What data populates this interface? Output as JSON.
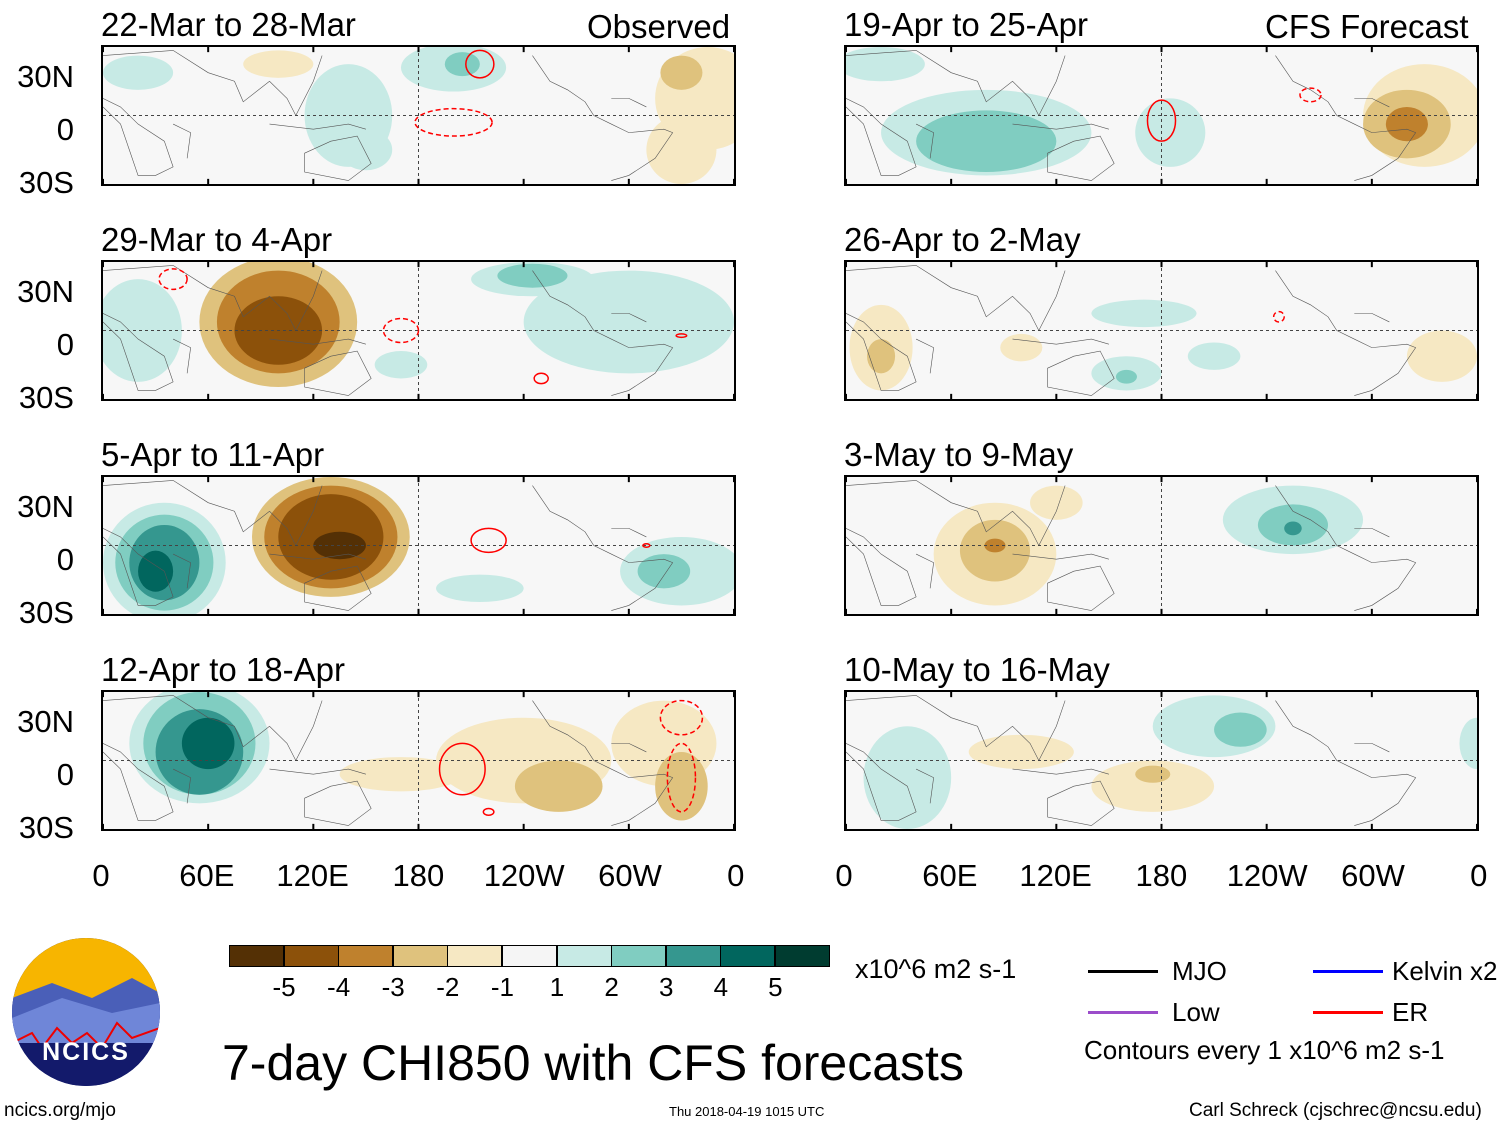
{
  "header": {
    "left_label": "Observed",
    "right_label": "CFS Forecast"
  },
  "axes": {
    "lat_labels": [
      "30N",
      "0",
      "30S"
    ],
    "lon_labels": [
      "0",
      "60E",
      "120E",
      "180",
      "120W",
      "60W",
      "0"
    ]
  },
  "chart_data": {
    "type": "heatmap",
    "title": "7-day CHI850 with CFS forecasts",
    "units": "x10^6 m2 s-1",
    "lon_range": [
      0,
      360
    ],
    "lat_range": [
      -40,
      40
    ],
    "colorbar": {
      "levels": [
        "-5",
        "-4",
        "-3",
        "-2",
        "-1",
        "1",
        "2",
        "3",
        "4",
        "5"
      ],
      "colors": [
        "#543005",
        "#8c510a",
        "#bf812d",
        "#dfc27d",
        "#f6e8c3",
        "#f5f5f5",
        "#c7eae5",
        "#80cdc1",
        "#35978f",
        "#01665e",
        "#003c30"
      ]
    },
    "panels": [
      {
        "title": "22-Mar to 28-Mar",
        "column": "observed",
        "blobs": [
          [
            140,
            0,
            25,
            30,
            1
          ],
          [
            200,
            28,
            30,
            14,
            1
          ],
          [
            205,
            30,
            10,
            7,
            2
          ],
          [
            150,
            -20,
            15,
            12,
            1
          ],
          [
            345,
            10,
            30,
            30,
            -1
          ],
          [
            330,
            -20,
            20,
            20,
            -1
          ],
          [
            330,
            25,
            12,
            10,
            -2
          ],
          [
            100,
            30,
            20,
            8,
            -1
          ],
          [
            20,
            25,
            20,
            10,
            1
          ]
        ],
        "er": [
          [
            200,
            -4,
            22,
            8,
            "dashed"
          ],
          [
            215,
            30,
            8,
            8,
            "solid"
          ]
        ]
      },
      {
        "title": "29-Mar to 4-Apr",
        "column": "observed",
        "blobs": [
          [
            100,
            5,
            45,
            38,
            -2
          ],
          [
            100,
            5,
            35,
            30,
            -3
          ],
          [
            100,
            0,
            25,
            20,
            -4
          ],
          [
            245,
            30,
            35,
            10,
            1
          ],
          [
            245,
            32,
            20,
            7,
            2
          ],
          [
            300,
            5,
            60,
            30,
            1
          ],
          [
            20,
            0,
            25,
            30,
            1
          ],
          [
            170,
            -20,
            15,
            8,
            1
          ]
        ],
        "er": [
          [
            170,
            0,
            10,
            7,
            "dashed"
          ],
          [
            250,
            -28,
            4,
            3,
            "solid"
          ],
          [
            330,
            -3,
            3,
            1,
            "solid"
          ],
          [
            40,
            30,
            8,
            6,
            "dashed"
          ]
        ]
      },
      {
        "title": "5-Apr to 11-Apr",
        "column": "observed",
        "blobs": [
          [
            35,
            -10,
            35,
            35,
            1
          ],
          [
            35,
            -10,
            28,
            28,
            2
          ],
          [
            35,
            -10,
            20,
            22,
            3
          ],
          [
            30,
            -15,
            10,
            12,
            4
          ],
          [
            130,
            5,
            45,
            35,
            -2
          ],
          [
            130,
            5,
            38,
            30,
            -3
          ],
          [
            130,
            5,
            30,
            25,
            -4
          ],
          [
            135,
            0,
            15,
            8,
            -5
          ],
          [
            330,
            -15,
            35,
            20,
            1
          ],
          [
            320,
            -15,
            15,
            10,
            2
          ],
          [
            215,
            -25,
            25,
            8,
            1
          ]
        ],
        "er": [
          [
            220,
            3,
            10,
            7,
            "solid"
          ],
          [
            310,
            0,
            2,
            1,
            "solid"
          ]
        ]
      },
      {
        "title": "12-Apr to 18-Apr",
        "column": "observed",
        "blobs": [
          [
            55,
            10,
            40,
            35,
            1
          ],
          [
            55,
            10,
            32,
            30,
            2
          ],
          [
            55,
            5,
            25,
            25,
            3
          ],
          [
            60,
            10,
            15,
            15,
            4
          ],
          [
            170,
            -8,
            35,
            10,
            -1
          ],
          [
            240,
            0,
            50,
            25,
            -1
          ],
          [
            320,
            10,
            30,
            25,
            -1
          ],
          [
            260,
            -15,
            25,
            15,
            -2
          ],
          [
            330,
            -15,
            15,
            20,
            -2
          ]
        ],
        "er": [
          [
            205,
            -5,
            13,
            15,
            "solid"
          ],
          [
            330,
            25,
            12,
            10,
            "dashed"
          ],
          [
            330,
            -10,
            8,
            20,
            "dashed"
          ],
          [
            220,
            -30,
            3,
            2,
            "solid"
          ]
        ]
      },
      {
        "title": "19-Apr to 25-Apr",
        "column": "forecast",
        "blobs": [
          [
            80,
            -10,
            60,
            25,
            1
          ],
          [
            80,
            -15,
            40,
            18,
            2
          ],
          [
            185,
            -10,
            20,
            20,
            1
          ],
          [
            330,
            0,
            35,
            30,
            -1
          ],
          [
            320,
            -5,
            25,
            20,
            -2
          ],
          [
            320,
            -5,
            12,
            10,
            -3
          ],
          [
            20,
            30,
            25,
            10,
            1
          ]
        ],
        "er": [
          [
            180,
            -3,
            8,
            12,
            "solid"
          ],
          [
            265,
            12,
            6,
            4,
            "dashed"
          ]
        ]
      },
      {
        "title": "26-Apr to 2-May",
        "column": "forecast",
        "blobs": [
          [
            20,
            -10,
            18,
            25,
            -1
          ],
          [
            20,
            -15,
            8,
            10,
            -2
          ],
          [
            160,
            -25,
            20,
            10,
            1
          ],
          [
            160,
            -27,
            6,
            4,
            2
          ],
          [
            100,
            -10,
            12,
            8,
            -1
          ],
          [
            210,
            -15,
            15,
            8,
            1
          ],
          [
            340,
            -15,
            20,
            15,
            -1
          ],
          [
            170,
            10,
            30,
            8,
            1
          ]
        ],
        "er": [
          [
            247,
            8,
            3,
            3,
            "dashed"
          ]
        ]
      },
      {
        "title": "3-May to 9-May",
        "column": "forecast",
        "blobs": [
          [
            85,
            -5,
            35,
            30,
            -1
          ],
          [
            85,
            -3,
            20,
            18,
            -2
          ],
          [
            85,
            0,
            6,
            4,
            -3
          ],
          [
            255,
            15,
            40,
            20,
            1
          ],
          [
            255,
            12,
            20,
            12,
            2
          ],
          [
            255,
            10,
            5,
            4,
            3
          ],
          [
            120,
            25,
            15,
            10,
            -1
          ]
        ],
        "er": []
      },
      {
        "title": "10-May to 16-May",
        "column": "forecast",
        "blobs": [
          [
            35,
            -10,
            25,
            30,
            1
          ],
          [
            210,
            20,
            35,
            18,
            1
          ],
          [
            225,
            18,
            15,
            10,
            2
          ],
          [
            175,
            -15,
            35,
            15,
            -1
          ],
          [
            175,
            -8,
            10,
            5,
            -2
          ],
          [
            100,
            5,
            30,
            10,
            -1
          ],
          [
            360,
            10,
            10,
            15,
            1
          ]
        ],
        "er": []
      }
    ]
  },
  "legend": {
    "units": "x10^6 m2 s-1",
    "items": [
      {
        "label": "MJO",
        "color": "#000000"
      },
      {
        "label": "Kelvin x2",
        "color": "#0000ff"
      },
      {
        "label": "Low",
        "color": "#9b4dca"
      },
      {
        "label": "ER",
        "color": "#ff0000"
      }
    ],
    "contours_note": "Contours every 1 x10^6 m2 s-1"
  },
  "footer": {
    "logo_text": "NCICS",
    "url": "ncics.org/mjo",
    "timestamp": "Thu 2018-04-19 1015 UTC",
    "author": "Carl Schreck (cjschrec@ncsu.edu)"
  }
}
